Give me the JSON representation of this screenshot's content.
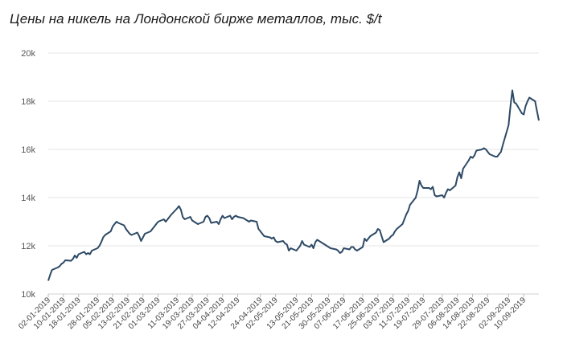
{
  "chart_data": {
    "type": "line",
    "title": "Цены на никель на Лондонской бирже металлов, тыс. $/t",
    "xlabel": "",
    "ylabel": "",
    "ylim": [
      10000,
      20000
    ],
    "y_ticks": [
      {
        "value": 10000,
        "label": "10k"
      },
      {
        "value": 12000,
        "label": "12k"
      },
      {
        "value": 14000,
        "label": "14k"
      },
      {
        "value": 16000,
        "label": "16k"
      },
      {
        "value": 18000,
        "label": "18k"
      },
      {
        "value": 20000,
        "label": "20k"
      }
    ],
    "x_start": "2019-01-02",
    "x_end": "2019-09-18",
    "x_tick_labels": [
      "02-01-2019",
      "10-01-2019",
      "18-01-2019",
      "28-01-2019",
      "05-02-2019",
      "13-02-2019",
      "21-02-2019",
      "01-03-2019",
      "11-03-2019",
      "19-03-2019",
      "27-03-2019",
      "04-04-2019",
      "12-04-2019",
      "24-04-2019",
      "02-05-2019",
      "13-05-2019",
      "21-05-2019",
      "30-05-2019",
      "07-06-2019",
      "17-06-2019",
      "25-06-2019",
      "03-07-2019",
      "11-07-2019",
      "19-07-2019",
      "29-07-2019",
      "06-08-2019",
      "14-08-2019",
      "22-08-2019",
      "02-09-2019",
      "10-09-2019"
    ],
    "grid": true,
    "line_color": "#2e4a66",
    "series": [
      {
        "points": [
          [
            "2019-01-02",
            10550
          ],
          [
            "2019-01-03",
            10800
          ],
          [
            "2019-01-04",
            11000
          ],
          [
            "2019-01-07",
            11100
          ],
          [
            "2019-01-08",
            11150
          ],
          [
            "2019-01-09",
            11250
          ],
          [
            "2019-01-10",
            11300
          ],
          [
            "2019-01-11",
            11400
          ],
          [
            "2019-01-14",
            11380
          ],
          [
            "2019-01-15",
            11450
          ],
          [
            "2019-01-16",
            11600
          ],
          [
            "2019-01-17",
            11500
          ],
          [
            "2019-01-18",
            11650
          ],
          [
            "2019-01-21",
            11750
          ],
          [
            "2019-01-22",
            11650
          ],
          [
            "2019-01-23",
            11700
          ],
          [
            "2019-01-24",
            11650
          ],
          [
            "2019-01-25",
            11800
          ],
          [
            "2019-01-28",
            11900
          ],
          [
            "2019-01-29",
            12000
          ],
          [
            "2019-01-30",
            12150
          ],
          [
            "2019-01-31",
            12350
          ],
          [
            "2019-02-01",
            12450
          ],
          [
            "2019-02-04",
            12600
          ],
          [
            "2019-02-05",
            12800
          ],
          [
            "2019-02-06",
            12900
          ],
          [
            "2019-02-07",
            13000
          ],
          [
            "2019-02-08",
            12950
          ],
          [
            "2019-02-11",
            12850
          ],
          [
            "2019-02-12",
            12700
          ],
          [
            "2019-02-13",
            12600
          ],
          [
            "2019-02-14",
            12500
          ],
          [
            "2019-02-15",
            12450
          ],
          [
            "2019-02-18",
            12550
          ],
          [
            "2019-02-19",
            12400
          ],
          [
            "2019-02-20",
            12200
          ],
          [
            "2019-02-21",
            12350
          ],
          [
            "2019-02-22",
            12500
          ],
          [
            "2019-02-25",
            12600
          ],
          [
            "2019-02-26",
            12700
          ],
          [
            "2019-02-27",
            12800
          ],
          [
            "2019-02-28",
            12900
          ],
          [
            "2019-03-01",
            13000
          ],
          [
            "2019-03-04",
            13100
          ],
          [
            "2019-03-05",
            13000
          ],
          [
            "2019-03-06",
            13100
          ],
          [
            "2019-03-07",
            13200
          ],
          [
            "2019-03-08",
            13300
          ],
          [
            "2019-03-11",
            13550
          ],
          [
            "2019-03-12",
            13650
          ],
          [
            "2019-03-13",
            13500
          ],
          [
            "2019-03-14",
            13200
          ],
          [
            "2019-03-15",
            13100
          ],
          [
            "2019-03-18",
            13200
          ],
          [
            "2019-03-19",
            13050
          ],
          [
            "2019-03-20",
            13000
          ],
          [
            "2019-03-21",
            12950
          ],
          [
            "2019-03-22",
            12900
          ],
          [
            "2019-03-25",
            13000
          ],
          [
            "2019-03-26",
            13200
          ],
          [
            "2019-03-27",
            13250
          ],
          [
            "2019-03-28",
            13150
          ],
          [
            "2019-03-29",
            12950
          ],
          [
            "2019-04-01",
            13000
          ],
          [
            "2019-04-02",
            12900
          ],
          [
            "2019-04-03",
            13100
          ],
          [
            "2019-04-04",
            13250
          ],
          [
            "2019-04-05",
            13150
          ],
          [
            "2019-04-08",
            13250
          ],
          [
            "2019-04-09",
            13100
          ],
          [
            "2019-04-10",
            13200
          ],
          [
            "2019-04-11",
            13250
          ],
          [
            "2019-04-12",
            13200
          ],
          [
            "2019-04-15",
            13150
          ],
          [
            "2019-04-16",
            13100
          ],
          [
            "2019-04-17",
            13050
          ],
          [
            "2019-04-18",
            13000
          ],
          [
            "2019-04-19",
            13050
          ],
          [
            "2019-04-22",
            13000
          ],
          [
            "2019-04-23",
            12700
          ],
          [
            "2019-04-24",
            12600
          ],
          [
            "2019-04-25",
            12500
          ],
          [
            "2019-04-26",
            12400
          ],
          [
            "2019-04-29",
            12350
          ],
          [
            "2019-04-30",
            12300
          ],
          [
            "2019-05-01",
            12350
          ],
          [
            "2019-05-02",
            12200
          ],
          [
            "2019-05-03",
            12150
          ],
          [
            "2019-05-06",
            12200
          ],
          [
            "2019-05-07",
            12100
          ],
          [
            "2019-05-08",
            12050
          ],
          [
            "2019-05-09",
            11800
          ],
          [
            "2019-05-10",
            11900
          ],
          [
            "2019-05-13",
            11800
          ],
          [
            "2019-05-14",
            11900
          ],
          [
            "2019-05-15",
            12000
          ],
          [
            "2019-05-16",
            12200
          ],
          [
            "2019-05-17",
            12050
          ],
          [
            "2019-05-20",
            11950
          ],
          [
            "2019-05-21",
            12050
          ],
          [
            "2019-05-22",
            11900
          ],
          [
            "2019-05-23",
            12150
          ],
          [
            "2019-05-24",
            12250
          ],
          [
            "2019-05-27",
            12100
          ],
          [
            "2019-05-28",
            12050
          ],
          [
            "2019-05-29",
            12000
          ],
          [
            "2019-05-30",
            11950
          ],
          [
            "2019-05-31",
            11900
          ],
          [
            "2019-06-03",
            11850
          ],
          [
            "2019-06-04",
            11800
          ],
          [
            "2019-06-05",
            11700
          ],
          [
            "2019-06-06",
            11750
          ],
          [
            "2019-06-07",
            11900
          ],
          [
            "2019-06-10",
            11850
          ],
          [
            "2019-06-11",
            11950
          ],
          [
            "2019-06-12",
            11950
          ],
          [
            "2019-06-13",
            11850
          ],
          [
            "2019-06-14",
            11800
          ],
          [
            "2019-06-17",
            11950
          ],
          [
            "2019-06-18",
            12300
          ],
          [
            "2019-06-19",
            12200
          ],
          [
            "2019-06-20",
            12300
          ],
          [
            "2019-06-21",
            12400
          ],
          [
            "2019-06-24",
            12550
          ],
          [
            "2019-06-25",
            12700
          ],
          [
            "2019-06-26",
            12650
          ],
          [
            "2019-06-27",
            12400
          ],
          [
            "2019-06-28",
            12150
          ],
          [
            "2019-07-01",
            12300
          ],
          [
            "2019-07-02",
            12400
          ],
          [
            "2019-07-03",
            12450
          ],
          [
            "2019-07-04",
            12600
          ],
          [
            "2019-07-05",
            12700
          ],
          [
            "2019-07-08",
            12900
          ],
          [
            "2019-07-09",
            13100
          ],
          [
            "2019-07-10",
            13300
          ],
          [
            "2019-07-11",
            13450
          ],
          [
            "2019-07-12",
            13700
          ],
          [
            "2019-07-15",
            14000
          ],
          [
            "2019-07-16",
            14300
          ],
          [
            "2019-07-17",
            14700
          ],
          [
            "2019-07-18",
            14500
          ],
          [
            "2019-07-19",
            14400
          ],
          [
            "2019-07-22",
            14400
          ],
          [
            "2019-07-23",
            14350
          ],
          [
            "2019-07-24",
            14450
          ],
          [
            "2019-07-25",
            14100
          ],
          [
            "2019-07-26",
            14050
          ],
          [
            "2019-07-29",
            14100
          ],
          [
            "2019-07-30",
            14000
          ],
          [
            "2019-07-31",
            14200
          ],
          [
            "2019-08-01",
            14350
          ],
          [
            "2019-08-02",
            14300
          ],
          [
            "2019-08-05",
            14500
          ],
          [
            "2019-08-06",
            14850
          ],
          [
            "2019-08-07",
            15050
          ],
          [
            "2019-08-08",
            14800
          ],
          [
            "2019-08-09",
            15200
          ],
          [
            "2019-08-12",
            15550
          ],
          [
            "2019-08-13",
            15700
          ],
          [
            "2019-08-14",
            15650
          ],
          [
            "2019-08-15",
            15750
          ],
          [
            "2019-08-16",
            15950
          ],
          [
            "2019-08-19",
            16000
          ],
          [
            "2019-08-20",
            16050
          ],
          [
            "2019-08-21",
            16000
          ],
          [
            "2019-08-22",
            15900
          ],
          [
            "2019-08-23",
            15800
          ],
          [
            "2019-08-26",
            15700
          ],
          [
            "2019-08-27",
            15700
          ],
          [
            "2019-08-28",
            15800
          ],
          [
            "2019-08-29",
            15900
          ],
          [
            "2019-08-30",
            16200
          ],
          [
            "2019-09-02",
            17000
          ],
          [
            "2019-09-03",
            17800
          ],
          [
            "2019-09-04",
            18450
          ],
          [
            "2019-09-05",
            17950
          ],
          [
            "2019-09-06",
            17900
          ],
          [
            "2019-09-09",
            17500
          ],
          [
            "2019-09-10",
            17450
          ],
          [
            "2019-09-11",
            17800
          ],
          [
            "2019-09-12",
            18000
          ],
          [
            "2019-09-13",
            18150
          ],
          [
            "2019-09-16",
            18000
          ],
          [
            "2019-09-17",
            17600
          ],
          [
            "2019-09-18",
            17200
          ]
        ]
      }
    ]
  }
}
